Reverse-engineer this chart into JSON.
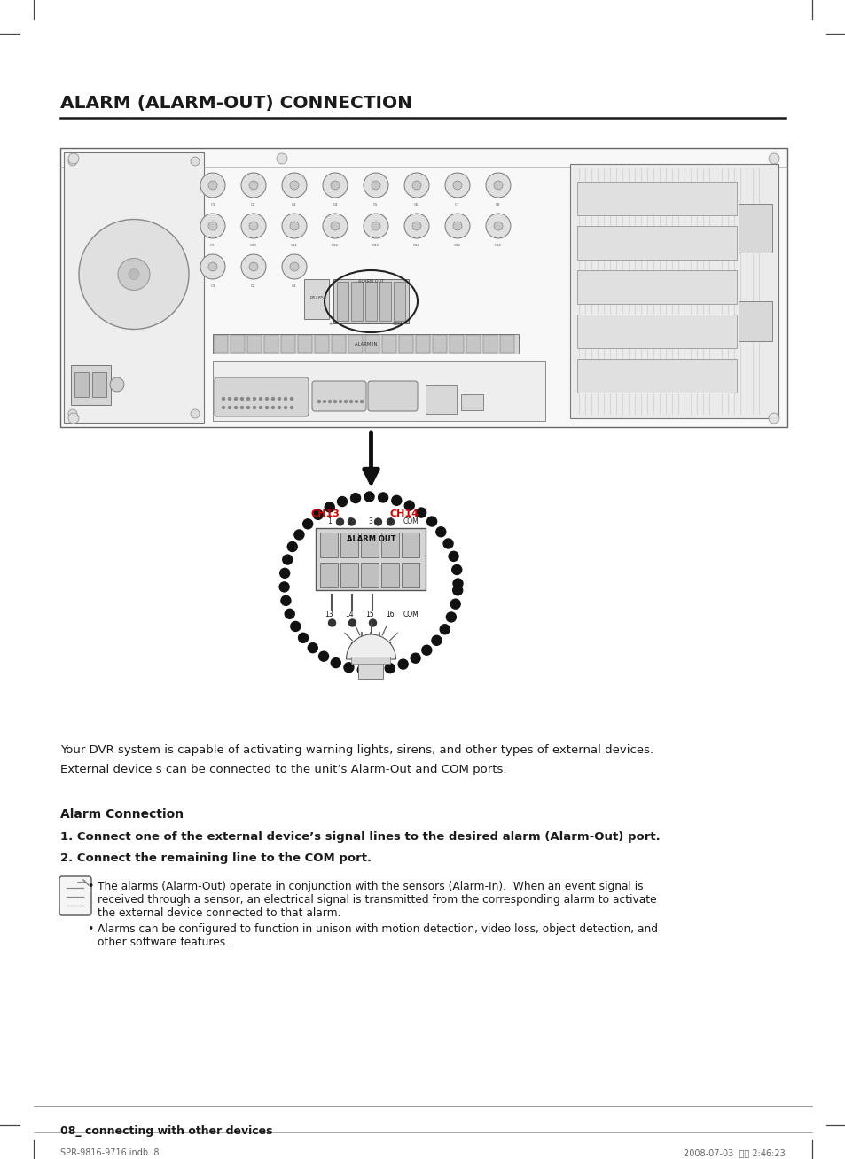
{
  "title": "ALARM (ALARM-OUT) CONNECTION",
  "page_num": "08_ connecting with other devices",
  "footer_left": "SPR-9816-9716.indb  8",
  "footer_right": "2008-07-03  오후 2:46:23",
  "para1": "Your DVR system is capable of activating warning lights, sirens, and other types of external devices.",
  "para2": "External device s can be connected to the unit’s Alarm-Out and COM ports.",
  "section_title": "Alarm Connection",
  "step1": "1. Connect one of the external device’s signal lines to the desired alarm (Alarm-Out) port.",
  "step2": "2. Connect the remaining line to the COM port.",
  "note1_line1": "The alarms (Alarm-Out) operate in conjunction with the sensors (Alarm-In).  When an event signal is",
  "note1_line2": "received through a sensor, an electrical signal is transmitted from the corresponding alarm to activate",
  "note1_line3": "the external device connected to that alarm.",
  "note2_line1": "Alarms can be configured to function in unison with motion detection, video loss, object detection, and",
  "note2_line2": "other software features.",
  "bg_color": "#ffffff",
  "text_color": "#1a1a1a",
  "title_color": "#1a1a1a",
  "panel_bg": "#f5f5f5",
  "panel_edge": "#888888"
}
